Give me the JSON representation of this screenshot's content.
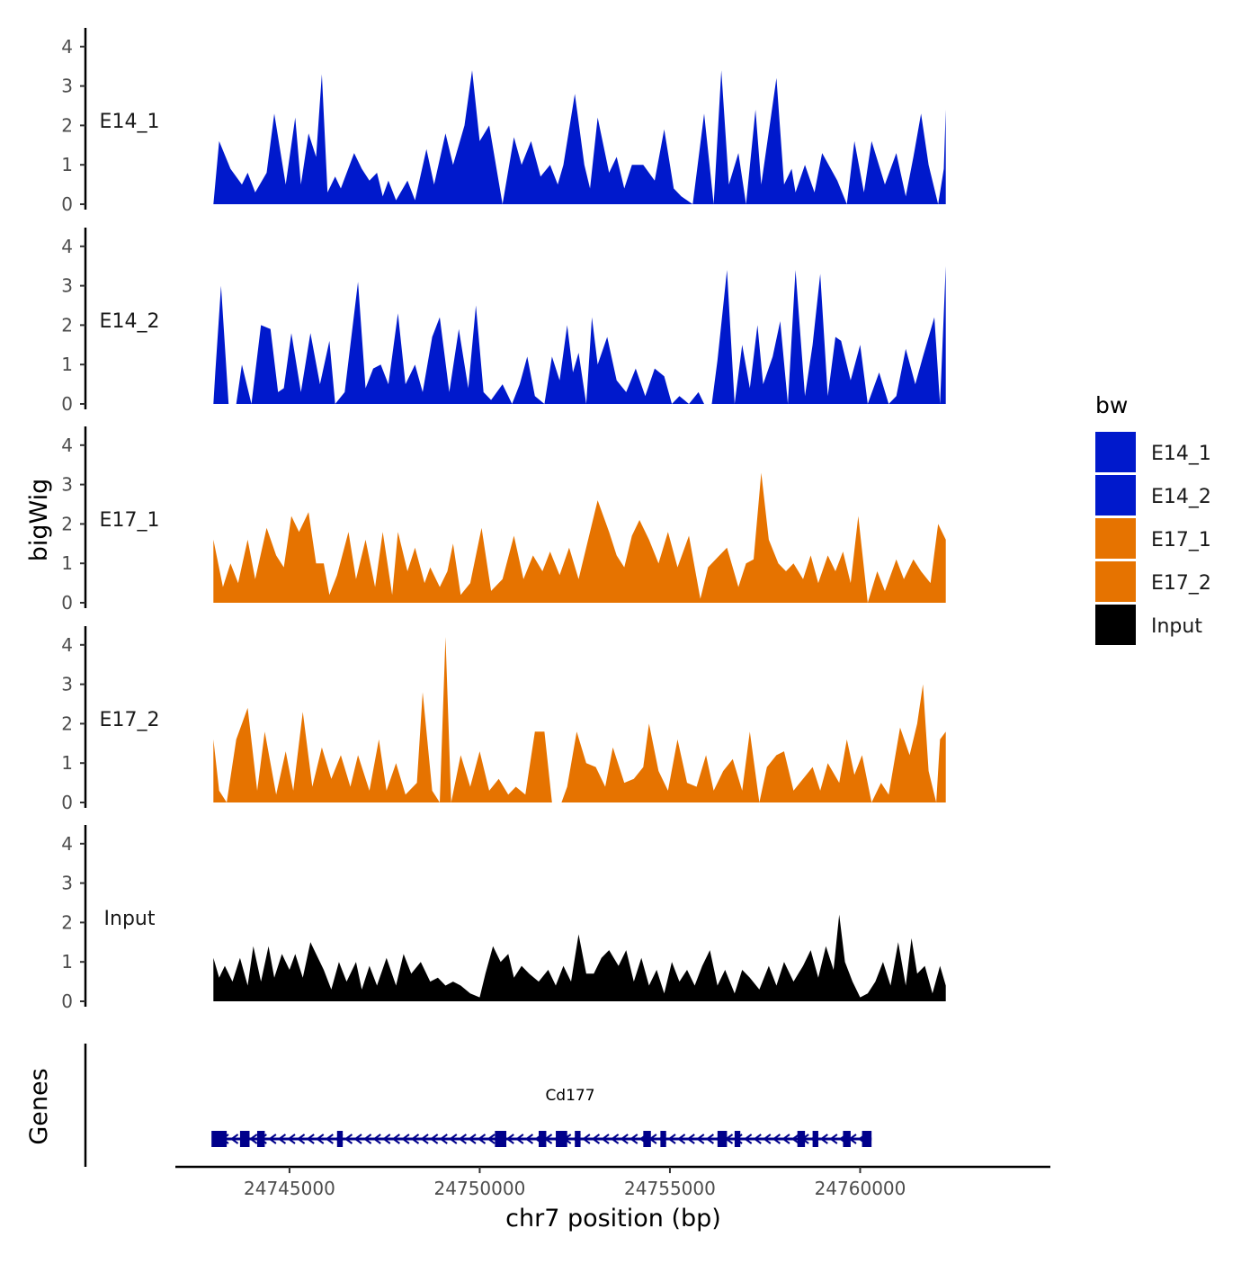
{
  "chart_data": {
    "type": "area",
    "title": "",
    "xlabel": "chr7 position (bp)",
    "ylabel": "bigWig",
    "genes_label": "Genes",
    "xlim": [
      24742000,
      24765000
    ],
    "ylim": [
      0,
      4.4
    ],
    "x_ticks": [
      24745000,
      24750000,
      24755000,
      24760000
    ],
    "x_tick_labels": [
      "24745000",
      "24750000",
      "24755000",
      "24760000"
    ],
    "y_ticks": [
      0,
      1,
      2,
      3,
      4
    ],
    "y_tick_labels": [
      "0",
      "1",
      "2",
      "3",
      "4"
    ],
    "legend": {
      "title": "bw",
      "position": "right",
      "entries": [
        {
          "label": "E14_1",
          "color": "#0019CC"
        },
        {
          "label": "E14_2",
          "color": "#0019CC"
        },
        {
          "label": "E17_1",
          "color": "#E67300"
        },
        {
          "label": "E17_2",
          "color": "#E67300"
        },
        {
          "label": "Input",
          "color": "#000000"
        }
      ]
    },
    "series": [
      {
        "name": "E14_1",
        "color": "#0019CC",
        "x": [
          24743000,
          24743150,
          24743450,
          24743750,
          24743900,
          24744100,
          24744400,
          24744600,
          24744900,
          24745150,
          24745300,
          24745500,
          24745700,
          24745850,
          24746000,
          24746200,
          24746350,
          24746700,
          24746900,
          24747100,
          24747300,
          24747450,
          24747600,
          24747800,
          24748100,
          24748300,
          24748600,
          24748800,
          24749100,
          24749300,
          24749600,
          24749800,
          24750000,
          24750250,
          24750600,
          24750900,
          24751100,
          24751350,
          24751600,
          24751850,
          24752050,
          24752200,
          24752500,
          24752750,
          24752900,
          24753100,
          24753400,
          24753600,
          24753800,
          24754000,
          24754300,
          24754600,
          24754850,
          24755100,
          24755300,
          24755600,
          24755900,
          24756150,
          24756350,
          24756550,
          24756800,
          24757000,
          24757250,
          24757400,
          24757800,
          24758000,
          24758200,
          24758300,
          24758550,
          24758800,
          24759000,
          24759400,
          24759650,
          24759850,
          24760100,
          24760300,
          24760650,
          24760950,
          24761200,
          24761400,
          24761600,
          24761800,
          24762050,
          24762200,
          24762250
        ],
        "values": [
          0,
          1.6,
          0.9,
          0.5,
          0.8,
          0.3,
          0.8,
          2.3,
          0.5,
          2.2,
          0.5,
          1.8,
          1.2,
          3.3,
          0.3,
          0.7,
          0.4,
          1.3,
          0.9,
          0.6,
          0.8,
          0.2,
          0.6,
          0.1,
          0.6,
          0.1,
          1.4,
          0.5,
          1.8,
          1.0,
          2.0,
          3.4,
          1.6,
          2.0,
          0,
          1.7,
          1.0,
          1.6,
          0.7,
          1.0,
          0.5,
          1.0,
          2.8,
          1.0,
          0.4,
          2.2,
          0.8,
          1.2,
          0.4,
          1.0,
          1.0,
          0.6,
          1.9,
          0.4,
          0.2,
          0,
          2.3,
          0,
          3.4,
          0.5,
          1.3,
          0,
          2.4,
          0.5,
          3.2,
          0.5,
          0.9,
          0.3,
          1.0,
          0.3,
          1.3,
          0.6,
          0,
          1.6,
          0.3,
          1.6,
          0.5,
          1.3,
          0.2,
          1.2,
          2.3,
          1.0,
          0,
          0.9,
          2.4
        ]
      },
      {
        "name": "E14_2",
        "color": "#0019CC",
        "x": [
          24743000,
          24743050,
          24743200,
          24743400,
          24743600,
          24743750,
          24744000,
          24744250,
          24744500,
          24744700,
          24744850,
          24745050,
          24745300,
          24745550,
          24745800,
          24746050,
          24746200,
          24746450,
          24746800,
          24747000,
          24747200,
          24747400,
          24747600,
          24747850,
          24748050,
          24748300,
          24748500,
          24748750,
          24748950,
          24749200,
          24749450,
          24749700,
          24749900,
          24750100,
          24750300,
          24750600,
          24750850,
          24751050,
          24751250,
          24751450,
          24751700,
          24751900,
          24752100,
          24752300,
          24752450,
          24752600,
          24752800,
          24752950,
          24753100,
          24753350,
          24753600,
          24753850,
          24754100,
          24754350,
          24754600,
          24754850,
          24755050,
          24755250,
          24755500,
          24755750,
          24755900,
          24756100,
          24756250,
          24756500,
          24756700,
          24756900,
          24757100,
          24757300,
          24757450,
          24757700,
          24757900,
          24758100,
          24758300,
          24758550,
          24758750,
          24758950,
          24759150,
          24759350,
          24759500,
          24759750,
          24760000,
          24760200,
          24760500,
          24760750,
          24760950,
          24761200,
          24761450,
          24761650,
          24761950,
          24762100,
          24762250
        ],
        "values": [
          0,
          0.8,
          3.0,
          0,
          0,
          1.0,
          0,
          2.0,
          1.9,
          0.3,
          0.4,
          1.8,
          0.3,
          1.8,
          0.5,
          1.6,
          0,
          0.3,
          3.1,
          0.4,
          0.9,
          1.0,
          0.5,
          2.3,
          0.5,
          1.0,
          0.3,
          1.7,
          2.2,
          0.3,
          1.9,
          0.4,
          2.5,
          0.3,
          0.1,
          0.5,
          0,
          0.5,
          1.2,
          0.2,
          0,
          1.2,
          0.6,
          2.0,
          0.8,
          1.3,
          0,
          2.2,
          1.0,
          1.7,
          0.6,
          0.3,
          0.9,
          0.2,
          0.9,
          0.7,
          0,
          0.2,
          0,
          0.3,
          0,
          0,
          1.1,
          3.4,
          0,
          1.5,
          0.4,
          2.0,
          0.5,
          1.2,
          2.1,
          0,
          3.4,
          0.2,
          1.5,
          3.3,
          0.2,
          1.7,
          1.6,
          0.6,
          1.5,
          0,
          0.8,
          0,
          0.2,
          1.4,
          0.5,
          1.2,
          2.2,
          0,
          3.5
        ]
      },
      {
        "name": "E17_1",
        "color": "#E67300",
        "x": [
          24743000,
          24743250,
          24743450,
          24743650,
          24743900,
          24744100,
          24744400,
          24744650,
          24744850,
          24745050,
          24745250,
          24745500,
          24745700,
          24745900,
          24746050,
          24746250,
          24746550,
          24746750,
          24747000,
          24747250,
          24747450,
          24747700,
          24747850,
          24748100,
          24748300,
          24748550,
          24748700,
          24748950,
          24749150,
          24749300,
          24749500,
          24749750,
          24750050,
          24750300,
          24750600,
          24750900,
          24751150,
          24751400,
          24751650,
          24751850,
          24752100,
          24752350,
          24752600,
          24752850,
          24753100,
          24753400,
          24753600,
          24753800,
          24754000,
          24754200,
          24754450,
          24754700,
          24754950,
          24755200,
          24755500,
          24755800,
          24756000,
          24756300,
          24756500,
          24756800,
          24757000,
          24757200,
          24757400,
          24757600,
          24757850,
          24758050,
          24758250,
          24758500,
          24758700,
          24758900,
          24759150,
          24759350,
          24759550,
          24759750,
          24759950,
          24760200,
          24760450,
          24760650,
          24760950,
          24761150,
          24761400,
          24761600,
          24761850,
          24762050,
          24762250
        ],
        "values": [
          1.6,
          0.4,
          1.0,
          0.5,
          1.6,
          0.6,
          1.9,
          1.2,
          0.9,
          2.2,
          1.8,
          2.3,
          1.0,
          1.0,
          0.2,
          0.7,
          1.8,
          0.6,
          1.6,
          0.4,
          1.8,
          0.2,
          1.8,
          0.8,
          1.4,
          0.5,
          0.9,
          0.4,
          0.8,
          1.5,
          0.2,
          0.5,
          1.9,
          0.3,
          0.6,
          1.7,
          0.6,
          1.2,
          0.8,
          1.3,
          0.7,
          1.4,
          0.6,
          1.6,
          2.6,
          1.8,
          1.2,
          0.9,
          1.7,
          2.1,
          1.6,
          1.0,
          1.8,
          0.9,
          1.7,
          0.1,
          0.9,
          1.2,
          1.4,
          0.4,
          1.0,
          1.1,
          3.3,
          1.6,
          1.0,
          0.8,
          1.0,
          0.6,
          1.2,
          0.5,
          1.2,
          0.8,
          1.3,
          0.5,
          2.2,
          0,
          0.8,
          0.3,
          1.1,
          0.6,
          1.1,
          0.8,
          0.5,
          2.0,
          1.6
        ]
      },
      {
        "name": "E17_2",
        "color": "#E67300",
        "x": [
          24743000,
          24743150,
          24743350,
          24743600,
          24743900,
          24744150,
          24744350,
          24744650,
          24744900,
          24745100,
          24745350,
          24745600,
          24745850,
          24746100,
          24746350,
          24746600,
          24746800,
          24747100,
          24747350,
          24747550,
          24747800,
          24748050,
          24748350,
          24748500,
          24748750,
          24748950,
          24749100,
          24749250,
          24749500,
          24749750,
          24750000,
          24750250,
          24750500,
          24750750,
          24750950,
          24751200,
          24751450,
          24751700,
          24751900,
          24752150,
          24752300,
          24752550,
          24752800,
          24753050,
          24753300,
          24753500,
          24753800,
          24754050,
          24754300,
          24754450,
          24754700,
          24754950,
          24755200,
          24755450,
          24755700,
          24755950,
          24756150,
          24756400,
          24756650,
          24756900,
          24757100,
          24757350,
          24757550,
          24757800,
          24758000,
          24758250,
          24758500,
          24758750,
          24758950,
          24759150,
          24759450,
          24759650,
          24759850,
          24760050,
          24760300,
          24760550,
          24760750,
          24761050,
          24761300,
          24761500,
          24761650,
          24761800,
          24762000,
          24762100,
          24762250
        ],
        "values": [
          1.6,
          0.3,
          0,
          1.6,
          2.4,
          0.3,
          1.8,
          0.2,
          1.3,
          0.3,
          2.3,
          0.4,
          1.4,
          0.6,
          1.2,
          0.4,
          1.2,
          0.3,
          1.6,
          0.3,
          1.0,
          0.2,
          0.5,
          2.8,
          0.3,
          0,
          4.2,
          0,
          1.2,
          0.4,
          1.3,
          0.3,
          0.6,
          0.2,
          0.4,
          0.2,
          1.8,
          1.8,
          0,
          0,
          0.4,
          1.8,
          1.0,
          0.9,
          0.4,
          1.4,
          0.5,
          0.6,
          0.9,
          2.0,
          0.8,
          0.3,
          1.6,
          0.5,
          0.4,
          1.2,
          0.3,
          0.8,
          1.1,
          0.3,
          1.8,
          0,
          0.9,
          1.2,
          1.3,
          0.3,
          0.6,
          0.9,
          0.3,
          1.0,
          0.5,
          1.6,
          0.7,
          1.2,
          0,
          0.5,
          0.2,
          1.9,
          1.2,
          2.0,
          3.0,
          0.8,
          0,
          1.6,
          1.8
        ]
      },
      {
        "name": "Input",
        "color": "#000000",
        "x": [
          24743000,
          24743150,
          24743300,
          24743500,
          24743700,
          24743900,
          24744050,
          24744250,
          24744450,
          24744600,
          24744800,
          24745000,
          24745150,
          24745350,
          24745550,
          24745750,
          24745900,
          24746100,
          24746300,
          24746500,
          24746750,
          24746900,
          24747100,
          24747300,
          24747550,
          24747800,
          24748000,
          24748200,
          24748450,
          24748700,
          24748900,
          24749100,
          24749300,
          24749500,
          24749750,
          24750000,
          24750150,
          24750350,
          24750550,
          24750750,
          24750900,
          24751100,
          24751300,
          24751550,
          24751800,
          24752000,
          24752200,
          24752400,
          24752600,
          24752800,
          24753000,
          24753200,
          24753400,
          24753650,
          24753850,
          24754050,
          24754250,
          24754450,
          24754650,
          24754850,
          24755050,
          24755250,
          24755450,
          24755650,
          24755850,
          24756050,
          24756250,
          24756450,
          24756700,
          24756900,
          24757100,
          24757350,
          24757600,
          24757800,
          24758000,
          24758250,
          24758500,
          24758700,
          24758900,
          24759100,
          24759300,
          24759450,
          24759600,
          24759800,
          24760000,
          24760200,
          24760400,
          24760600,
          24760800,
          24761000,
          24761200,
          24761350,
          24761500,
          24761700,
          24761900,
          24762100,
          24762250
        ],
        "values": [
          1.1,
          0.6,
          0.9,
          0.5,
          1.1,
          0.4,
          1.4,
          0.5,
          1.4,
          0.6,
          1.2,
          0.8,
          1.2,
          0.6,
          1.5,
          1.1,
          0.8,
          0.3,
          1.0,
          0.5,
          1.0,
          0.3,
          0.9,
          0.4,
          1.1,
          0.4,
          1.2,
          0.7,
          1.0,
          0.5,
          0.6,
          0.4,
          0.5,
          0.4,
          0.2,
          0.1,
          0.7,
          1.4,
          1.0,
          1.2,
          0.6,
          0.9,
          0.7,
          0.5,
          0.8,
          0.4,
          0.9,
          0.5,
          1.7,
          0.7,
          0.7,
          1.1,
          1.3,
          0.9,
          1.3,
          0.5,
          1.1,
          0.4,
          0.8,
          0.2,
          1.0,
          0.5,
          0.8,
          0.4,
          0.9,
          1.3,
          0.4,
          0.8,
          0.2,
          0.8,
          0.6,
          0.3,
          0.9,
          0.4,
          1.0,
          0.5,
          0.9,
          1.3,
          0.6,
          1.4,
          0.8,
          2.2,
          1.0,
          0.5,
          0.1,
          0.2,
          0.5,
          1.0,
          0.4,
          1.5,
          0.4,
          1.6,
          0.7,
          0.9,
          0.2,
          0.9,
          0.4
        ]
      }
    ],
    "gene": {
      "name": "Cd177",
      "start": 24743000,
      "end": 24760300,
      "strand": "-",
      "color": "#00008B",
      "exons": [
        [
          24742950,
          24743350
        ],
        [
          24743700,
          24743950
        ],
        [
          24744150,
          24744350
        ],
        [
          24746250,
          24746400
        ],
        [
          24750400,
          24750700
        ],
        [
          24751550,
          24751750
        ],
        [
          24752000,
          24752300
        ],
        [
          24752500,
          24752650
        ],
        [
          24754300,
          24754500
        ],
        [
          24754750,
          24754900
        ],
        [
          24756250,
          24756500
        ],
        [
          24756700,
          24756850
        ],
        [
          24758350,
          24758550
        ],
        [
          24758750,
          24758900
        ],
        [
          24759550,
          24759750
        ],
        [
          24760050,
          24760300
        ]
      ]
    }
  }
}
